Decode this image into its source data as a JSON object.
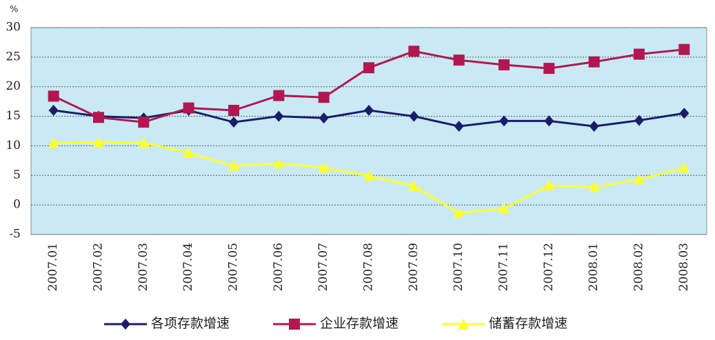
{
  "chart_data": {
    "type": "line",
    "y_unit": "%",
    "categories": [
      "2007.01",
      "2007.02",
      "2007.03",
      "2007.04",
      "2007.05",
      "2007.06",
      "2007.07",
      "2007.08",
      "2007.09",
      "2007.10",
      "2007.11",
      "2007.12",
      "2008.01",
      "2008.02",
      "2008.03"
    ],
    "series": [
      {
        "name": "各项存款增速",
        "color": "#1c1c6b",
        "marker": "diamond",
        "values": [
          16,
          15,
          14.7,
          16,
          14,
          15,
          14.7,
          16,
          15,
          13.3,
          14.2,
          14.2,
          13.3,
          14.3,
          15.5
        ]
      },
      {
        "name": "企业存款增速",
        "color": "#b3174f",
        "marker": "square",
        "values": [
          18.4,
          14.8,
          14,
          16.4,
          16,
          18.5,
          18.2,
          23.2,
          26,
          24.5,
          23.7,
          23.1,
          24.2,
          25.5,
          26.3
        ]
      },
      {
        "name": "储蓄存款增速",
        "color": "#ffff2e",
        "marker": "triangle",
        "values": [
          10.5,
          10.6,
          10.5,
          8.8,
          6.6,
          7,
          6.3,
          4.9,
          3.2,
          -1.4,
          -0.6,
          3.3,
          3,
          4.3,
          6.3
        ]
      }
    ],
    "ylim": [
      -5,
      30
    ],
    "yticks": [
      -5,
      0,
      5,
      10,
      15,
      20,
      25,
      30
    ],
    "grid": true,
    "legend": "bottom"
  }
}
